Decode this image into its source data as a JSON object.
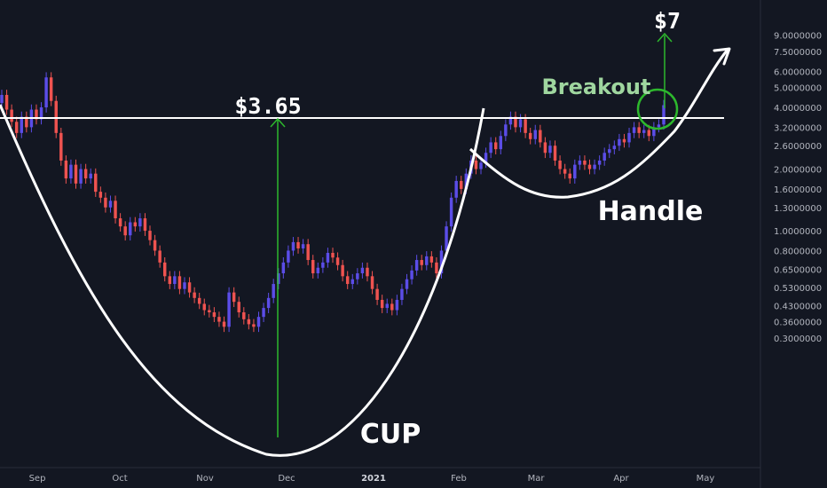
{
  "chart_data": {
    "type": "candlestick",
    "price_scale": "log",
    "y_ticks": [
      "9.0000000",
      "7.5000000",
      "6.0000000",
      "5.0000000",
      "4.0000000",
      "3.2000000",
      "2.6000000",
      "2.0000000",
      "1.6000000",
      "1.3000000",
      "1.0000000",
      "0.8000000",
      "0.6500000",
      "0.5300000",
      "0.4300000",
      "0.3600000",
      "0.3000000"
    ],
    "x_ticks": [
      "Sep",
      "Oct",
      "Nov",
      "Dec",
      "2021",
      "Feb",
      "Mar",
      "Apr",
      "May"
    ],
    "x_ticks_bold": [
      "2021"
    ],
    "colors": {
      "background": "#131722",
      "up": "#5b4de8",
      "down": "#ef5350",
      "pattern": "#ffffff",
      "breakout": "#2db82d",
      "breakout_label": "#9fd69f"
    },
    "annotations": {
      "cup_depth_label": "$3.65",
      "target_label": "$7",
      "breakout_label": "Breakout",
      "cup_label": "CUP",
      "handle_label": "Handle"
    },
    "candles": [
      {
        "o": 4.2,
        "c": 4.6
      },
      {
        "o": 4.6,
        "c": 3.9
      },
      {
        "o": 3.9,
        "c": 3.4
      },
      {
        "o": 3.4,
        "c": 3.0
      },
      {
        "o": 3.0,
        "c": 3.6
      },
      {
        "o": 3.6,
        "c": 3.2
      },
      {
        "o": 3.2,
        "c": 3.9
      },
      {
        "o": 3.9,
        "c": 3.5
      },
      {
        "o": 3.5,
        "c": 4.0
      },
      {
        "o": 4.0,
        "c": 5.6
      },
      {
        "o": 5.6,
        "c": 4.3
      },
      {
        "o": 4.3,
        "c": 3.0
      },
      {
        "o": 3.0,
        "c": 2.2
      },
      {
        "o": 2.2,
        "c": 1.8
      },
      {
        "o": 1.8,
        "c": 2.1
      },
      {
        "o": 2.1,
        "c": 1.7
      },
      {
        "o": 1.7,
        "c": 2.0
      },
      {
        "o": 2.0,
        "c": 1.8
      },
      {
        "o": 1.8,
        "c": 1.9
      },
      {
        "o": 1.9,
        "c": 1.55
      },
      {
        "o": 1.55,
        "c": 1.45
      },
      {
        "o": 1.45,
        "c": 1.3
      },
      {
        "o": 1.3,
        "c": 1.4
      },
      {
        "o": 1.4,
        "c": 1.15
      },
      {
        "o": 1.15,
        "c": 1.05
      },
      {
        "o": 1.05,
        "c": 0.95
      },
      {
        "o": 0.95,
        "c": 1.1
      },
      {
        "o": 1.1,
        "c": 1.05
      },
      {
        "o": 1.05,
        "c": 1.15
      },
      {
        "o": 1.15,
        "c": 1.0
      },
      {
        "o": 1.0,
        "c": 0.9
      },
      {
        "o": 0.9,
        "c": 0.8
      },
      {
        "o": 0.8,
        "c": 0.7
      },
      {
        "o": 0.7,
        "c": 0.6
      },
      {
        "o": 0.6,
        "c": 0.55
      },
      {
        "o": 0.55,
        "c": 0.6
      },
      {
        "o": 0.6,
        "c": 0.52
      },
      {
        "o": 0.52,
        "c": 0.56
      },
      {
        "o": 0.56,
        "c": 0.5
      },
      {
        "o": 0.5,
        "c": 0.47
      },
      {
        "o": 0.47,
        "c": 0.44
      },
      {
        "o": 0.44,
        "c": 0.41
      },
      {
        "o": 0.41,
        "c": 0.4
      },
      {
        "o": 0.4,
        "c": 0.38
      },
      {
        "o": 0.38,
        "c": 0.36
      },
      {
        "o": 0.36,
        "c": 0.34
      },
      {
        "o": 0.34,
        "c": 0.5
      },
      {
        "o": 0.5,
        "c": 0.45
      },
      {
        "o": 0.45,
        "c": 0.4
      },
      {
        "o": 0.4,
        "c": 0.37
      },
      {
        "o": 0.37,
        "c": 0.35
      },
      {
        "o": 0.35,
        "c": 0.34
      },
      {
        "o": 0.34,
        "c": 0.38
      },
      {
        "o": 0.38,
        "c": 0.42
      },
      {
        "o": 0.42,
        "c": 0.47
      },
      {
        "o": 0.47,
        "c": 0.55
      },
      {
        "o": 0.55,
        "c": 0.62
      },
      {
        "o": 0.62,
        "c": 0.7
      },
      {
        "o": 0.7,
        "c": 0.8
      },
      {
        "o": 0.8,
        "c": 0.88
      },
      {
        "o": 0.88,
        "c": 0.82
      },
      {
        "o": 0.82,
        "c": 0.86
      },
      {
        "o": 0.86,
        "c": 0.72
      },
      {
        "o": 0.72,
        "c": 0.62
      },
      {
        "o": 0.62,
        "c": 0.66
      },
      {
        "o": 0.66,
        "c": 0.7
      },
      {
        "o": 0.7,
        "c": 0.78
      },
      {
        "o": 0.78,
        "c": 0.74
      },
      {
        "o": 0.74,
        "c": 0.68
      },
      {
        "o": 0.68,
        "c": 0.6
      },
      {
        "o": 0.6,
        "c": 0.55
      },
      {
        "o": 0.55,
        "c": 0.58
      },
      {
        "o": 0.58,
        "c": 0.62
      },
      {
        "o": 0.62,
        "c": 0.66
      },
      {
        "o": 0.66,
        "c": 0.6
      },
      {
        "o": 0.6,
        "c": 0.52
      },
      {
        "o": 0.52,
        "c": 0.46
      },
      {
        "o": 0.46,
        "c": 0.42
      },
      {
        "o": 0.42,
        "c": 0.44
      },
      {
        "o": 0.44,
        "c": 0.41
      },
      {
        "o": 0.41,
        "c": 0.46
      },
      {
        "o": 0.46,
        "c": 0.52
      },
      {
        "o": 0.52,
        "c": 0.58
      },
      {
        "o": 0.58,
        "c": 0.64
      },
      {
        "o": 0.64,
        "c": 0.72
      },
      {
        "o": 0.72,
        "c": 0.68
      },
      {
        "o": 0.68,
        "c": 0.75
      },
      {
        "o": 0.75,
        "c": 0.7
      },
      {
        "o": 0.7,
        "c": 0.62
      },
      {
        "o": 0.62,
        "c": 0.8
      },
      {
        "o": 0.8,
        "c": 1.05
      },
      {
        "o": 1.05,
        "c": 1.45
      },
      {
        "o": 1.45,
        "c": 1.75
      },
      {
        "o": 1.75,
        "c": 1.6
      },
      {
        "o": 1.6,
        "c": 1.9
      },
      {
        "o": 1.9,
        "c": 2.2
      },
      {
        "o": 2.2,
        "c": 2.0
      },
      {
        "o": 2.0,
        "c": 2.15
      },
      {
        "o": 2.15,
        "c": 2.4
      },
      {
        "o": 2.4,
        "c": 2.7
      },
      {
        "o": 2.7,
        "c": 2.5
      },
      {
        "o": 2.5,
        "c": 2.9
      },
      {
        "o": 2.9,
        "c": 3.3
      },
      {
        "o": 3.3,
        "c": 3.6
      },
      {
        "o": 3.6,
        "c": 3.2
      },
      {
        "o": 3.2,
        "c": 3.5
      },
      {
        "o": 3.5,
        "c": 3.0
      },
      {
        "o": 3.0,
        "c": 2.8
      },
      {
        "o": 2.8,
        "c": 3.1
      },
      {
        "o": 3.1,
        "c": 2.7
      },
      {
        "o": 2.7,
        "c": 2.4
      },
      {
        "o": 2.4,
        "c": 2.6
      },
      {
        "o": 2.6,
        "c": 2.2
      },
      {
        "o": 2.2,
        "c": 2.0
      },
      {
        "o": 2.0,
        "c": 1.9
      },
      {
        "o": 1.9,
        "c": 1.8
      },
      {
        "o": 1.8,
        "c": 2.1
      },
      {
        "o": 2.1,
        "c": 2.2
      },
      {
        "o": 2.2,
        "c": 2.1
      },
      {
        "o": 2.1,
        "c": 2.0
      },
      {
        "o": 2.0,
        "c": 2.1
      },
      {
        "o": 2.1,
        "c": 2.2
      },
      {
        "o": 2.2,
        "c": 2.4
      },
      {
        "o": 2.4,
        "c": 2.5
      },
      {
        "o": 2.5,
        "c": 2.6
      },
      {
        "o": 2.6,
        "c": 2.8
      },
      {
        "o": 2.8,
        "c": 2.7
      },
      {
        "o": 2.7,
        "c": 3.0
      },
      {
        "o": 3.0,
        "c": 3.2
      },
      {
        "o": 3.2,
        "c": 3.0
      },
      {
        "o": 3.0,
        "c": 3.1
      },
      {
        "o": 3.1,
        "c": 2.9
      },
      {
        "o": 2.9,
        "c": 3.2
      },
      {
        "o": 3.2,
        "c": 3.3
      },
      {
        "o": 3.3,
        "c": 4.1
      }
    ]
  }
}
